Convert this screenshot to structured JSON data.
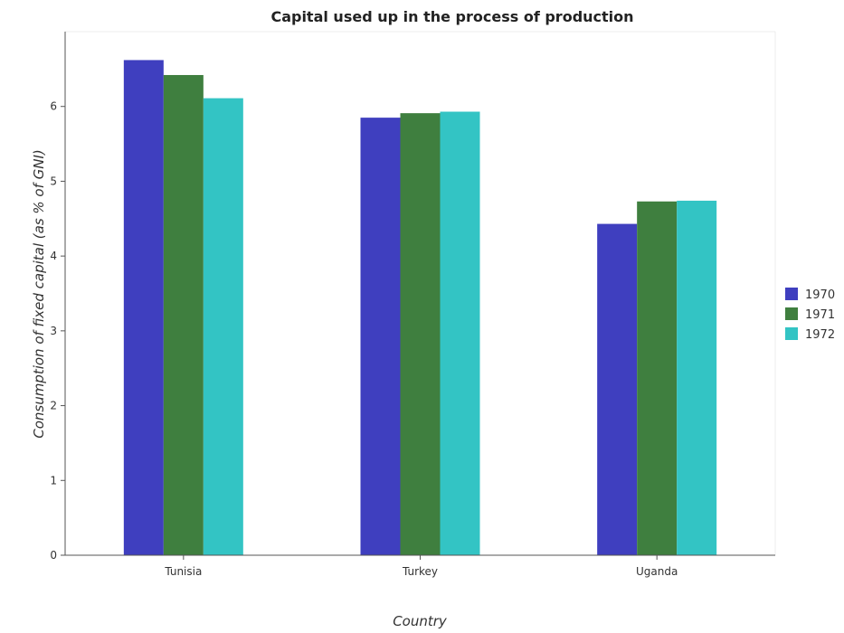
{
  "chart_data": {
    "type": "bar",
    "title": "Capital used up in the process of production",
    "xlabel": "Country",
    "ylabel": "Consumption of fixed capital (as % of GNI)",
    "categories": [
      "Tunisia",
      "Turkey",
      "Uganda"
    ],
    "series": [
      {
        "name": "1970",
        "color": "#3f3fbf",
        "values": [
          6.62,
          5.85,
          4.43
        ]
      },
      {
        "name": "1971",
        "color": "#3f7f3f",
        "values": [
          6.42,
          5.91,
          4.73
        ]
      },
      {
        "name": "1972",
        "color": "#33c4c4",
        "values": [
          6.11,
          5.93,
          4.74
        ]
      }
    ],
    "ylim": [
      0,
      7
    ],
    "yticks": [
      "0",
      "1",
      "2",
      "3",
      "4",
      "5",
      "6"
    ],
    "legend_position": "right",
    "grid": false
  }
}
